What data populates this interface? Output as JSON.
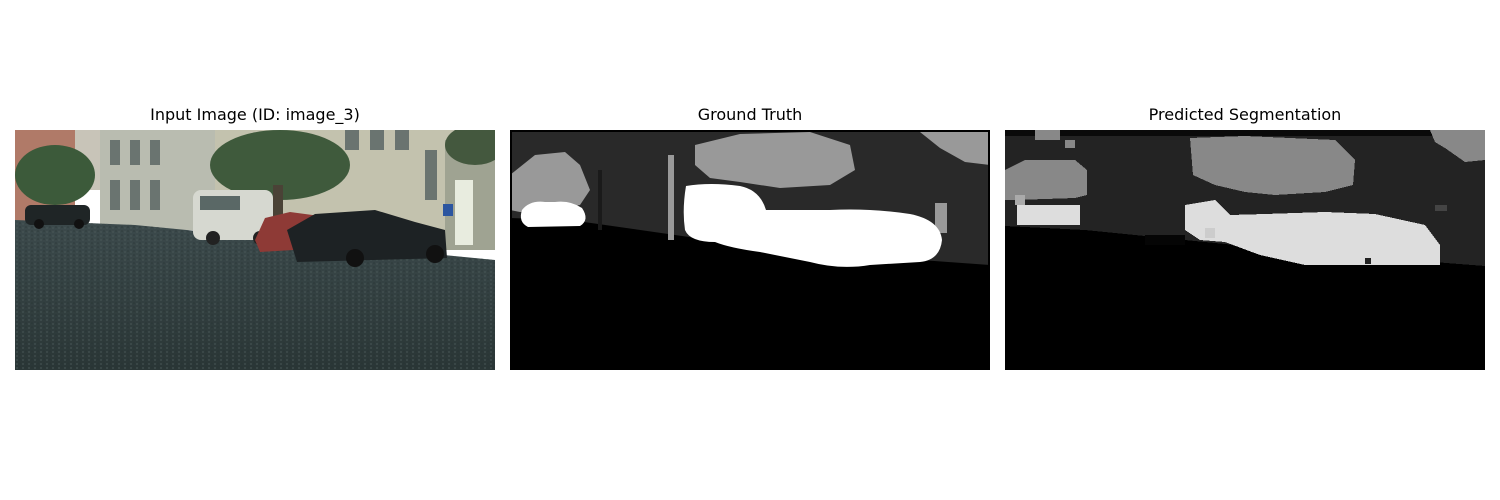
{
  "figure": {
    "panels": [
      {
        "title": "Input Image (ID: image_3)"
      },
      {
        "title": "Ground Truth"
      },
      {
        "title": "Predicted Segmentation"
      }
    ]
  }
}
